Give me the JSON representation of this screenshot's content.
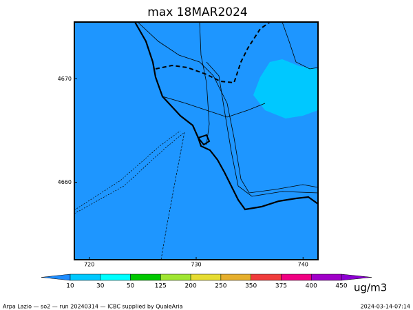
{
  "title": "max 18MAR2024",
  "map": {
    "xlim": [
      718.6,
      741.4
    ],
    "ylim": [
      4652.5,
      4675.5
    ],
    "xticks": [
      720,
      730,
      740
    ],
    "yticks": [
      4660,
      4670
    ],
    "fill": "#1e96ff",
    "plume": "#00c8ff"
  },
  "colorbar": {
    "levels": [
      10,
      30,
      50,
      125,
      200,
      250,
      350,
      375,
      400,
      450
    ],
    "colors": [
      "#1e8cff",
      "#00c8ff",
      "#00ffff",
      "#00c800",
      "#a0e632",
      "#e6dc32",
      "#e6af2d",
      "#f03c3c",
      "#f00082",
      "#a000c8",
      "#8c00d2"
    ],
    "unit": "ug/m3"
  },
  "footer": {
    "left": "Arpa Lazio — so2 — run 20240314 — ICBC supplied by QualeAria",
    "right": "2024-03-14-07:14"
  }
}
